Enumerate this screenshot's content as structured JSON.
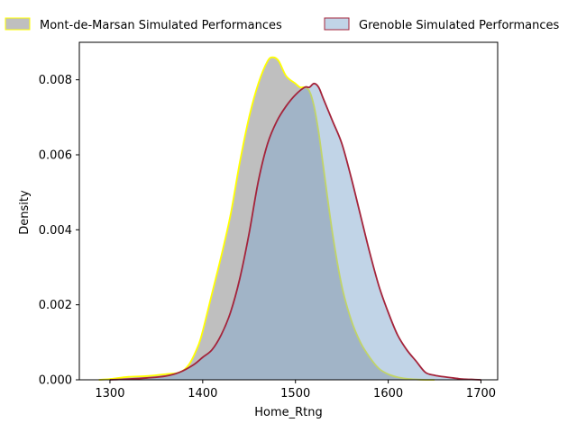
{
  "chart_data": {
    "type": "area",
    "title": "",
    "xlabel": "Home_Rtng",
    "ylabel": "Density",
    "xlim": [
      1267,
      1718
    ],
    "ylim": [
      0,
      0.009
    ],
    "xticks": [
      1300,
      1400,
      1500,
      1600,
      1700
    ],
    "xtick_labels": [
      "1300",
      "1400",
      "1500",
      "1600",
      "1700"
    ],
    "yticks": [
      0,
      0.002,
      0.004,
      0.006,
      0.008
    ],
    "ytick_labels": [
      "0.000",
      "0.002",
      "0.004",
      "0.006",
      "0.008"
    ],
    "grid": false,
    "legend": {
      "placement": "top, above plot",
      "columns": 2
    },
    "series": [
      {
        "name": "Mont-de-Marsan Simulated Performances",
        "fill": "#7f7f7f",
        "fill_opacity": 0.5,
        "line": "#ffff00",
        "x": [
          1288,
          1300,
          1320,
          1340,
          1360,
          1375,
          1385,
          1395,
          1400,
          1410,
          1420,
          1430,
          1440,
          1450,
          1460,
          1470,
          1476,
          1482,
          1490,
          1500,
          1505,
          1510,
          1515,
          1520,
          1525,
          1530,
          1540,
          1550,
          1560,
          1570,
          1580,
          1590,
          1600,
          1610,
          1620,
          1630,
          1640,
          1650
        ],
        "y": [
          0,
          2e-05,
          8e-05,
          0.0001,
          0.00015,
          0.0002,
          0.0004,
          0.0009,
          0.0013,
          0.0023,
          0.0033,
          0.0044,
          0.0058,
          0.007,
          0.0079,
          0.0085,
          0.0086,
          0.0085,
          0.0081,
          0.0079,
          0.0078,
          0.0078,
          0.0077,
          0.0073,
          0.0066,
          0.0057,
          0.0039,
          0.0025,
          0.0016,
          0.001,
          0.0006,
          0.0003,
          0.00015,
          7e-05,
          3e-05,
          1e-05,
          0,
          0
        ]
      },
      {
        "name": "Grenoble Simulated Performances",
        "fill": "#84a9cf",
        "fill_opacity": 0.5,
        "line": "#a4243b",
        "x": [
          1300,
          1320,
          1340,
          1360,
          1375,
          1390,
          1400,
          1410,
          1420,
          1430,
          1440,
          1450,
          1460,
          1470,
          1480,
          1490,
          1500,
          1510,
          1515,
          1520,
          1525,
          1530,
          1540,
          1550,
          1560,
          1570,
          1580,
          1590,
          1600,
          1610,
          1620,
          1630,
          1640,
          1650,
          1660,
          1670,
          1680,
          1690,
          1700
        ],
        "y": [
          0,
          2e-05,
          5e-05,
          0.0001,
          0.0002,
          0.0004,
          0.0006,
          0.0008,
          0.0012,
          0.0018,
          0.0027,
          0.0039,
          0.0053,
          0.0063,
          0.0069,
          0.0073,
          0.0076,
          0.0078,
          0.0078,
          0.0079,
          0.0078,
          0.0075,
          0.0069,
          0.0063,
          0.0054,
          0.0044,
          0.0034,
          0.0025,
          0.0018,
          0.0012,
          0.0008,
          0.0005,
          0.0002,
          0.00012,
          8e-05,
          5e-05,
          2e-05,
          1e-05,
          0
        ]
      }
    ]
  }
}
